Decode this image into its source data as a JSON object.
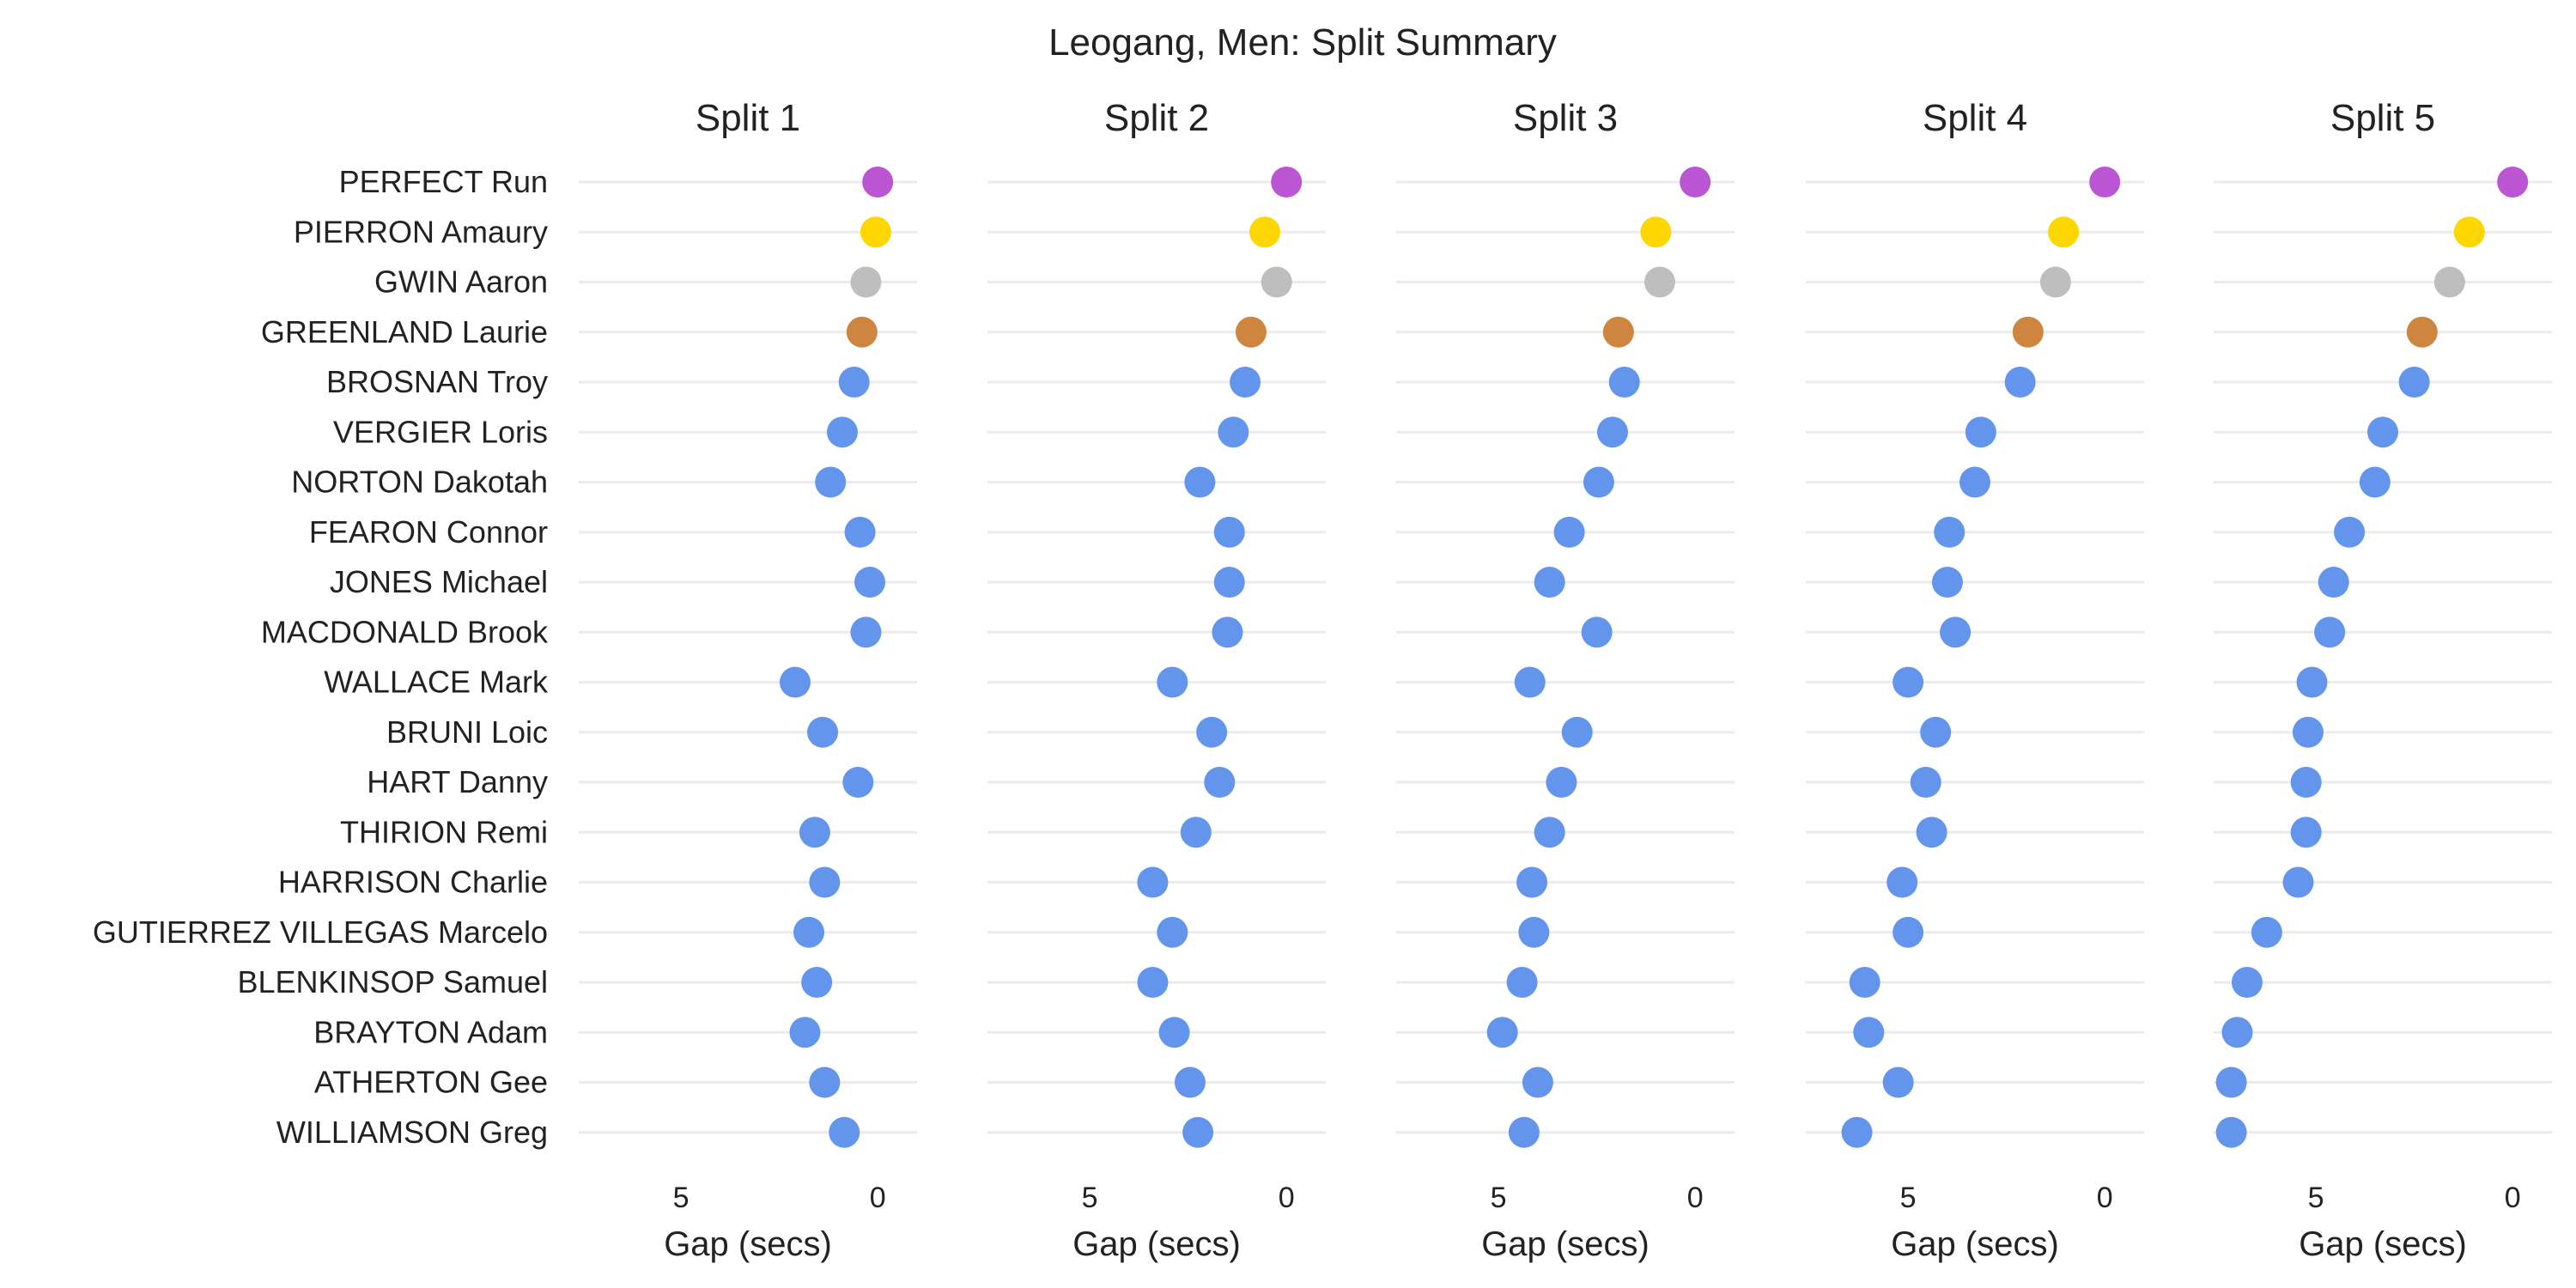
{
  "chart_data": {
    "type": "scatter",
    "title": "Leogang, Men: Split Summary",
    "xlabel": "Gap (secs)",
    "xlim": [
      7.6,
      -1.0
    ],
    "x_ticks": [
      5,
      0
    ],
    "x_reversed": true,
    "grid": "horizontal",
    "legend": "none",
    "riders": [
      "PERFECT Run",
      "PIERRON Amaury",
      "GWIN Aaron",
      "GREENLAND Laurie",
      "BROSNAN Troy",
      "VERGIER Loris",
      "NORTON Dakotah",
      "FEARON Connor",
      "JONES Michael",
      "MACDONALD Brook",
      "WALLACE Mark",
      "BRUNI Loic",
      "HART Danny",
      "THIRION Remi",
      "HARRISON Charlie",
      "GUTIERREZ VILLEGAS Marcelo",
      "BLENKINSOP Samuel",
      "BRAYTON Adam",
      "ATHERTON Gee",
      "WILLIAMSON Greg"
    ],
    "point_colors": [
      "#ba55d3",
      "#ffd700",
      "#bebebe",
      "#cd853f",
      "#6495ed",
      "#6495ed",
      "#6495ed",
      "#6495ed",
      "#6495ed",
      "#6495ed",
      "#6495ed",
      "#6495ed",
      "#6495ed",
      "#6495ed",
      "#6495ed",
      "#6495ed",
      "#6495ed",
      "#6495ed",
      "#6495ed",
      "#6495ed"
    ],
    "panels": [
      {
        "title": "Split 1",
        "values": [
          0.0,
          0.05,
          0.3,
          0.4,
          0.6,
          0.9,
          1.2,
          0.45,
          0.2,
          0.3,
          2.1,
          1.4,
          0.5,
          1.6,
          1.35,
          1.75,
          1.55,
          1.85,
          1.35,
          0.85
        ]
      },
      {
        "title": "Split 2",
        "values": [
          0.0,
          0.55,
          0.25,
          0.9,
          1.05,
          1.35,
          2.2,
          1.45,
          1.45,
          1.5,
          2.9,
          1.9,
          1.7,
          2.3,
          3.4,
          2.9,
          3.4,
          2.85,
          2.45,
          2.25
        ]
      },
      {
        "title": "Split 3",
        "values": [
          0.0,
          1.0,
          0.9,
          1.95,
          1.8,
          2.1,
          2.45,
          3.2,
          3.7,
          2.5,
          4.2,
          3.0,
          3.4,
          3.7,
          4.15,
          4.1,
          4.4,
          4.9,
          4.0,
          4.35
        ]
      },
      {
        "title": "Split 4",
        "values": [
          0.0,
          1.05,
          1.25,
          1.95,
          2.15,
          3.15,
          3.3,
          3.95,
          4.0,
          3.8,
          5.0,
          4.3,
          4.55,
          4.4,
          5.15,
          5.0,
          6.1,
          6.0,
          5.25,
          6.3
        ]
      },
      {
        "title": "Split 5",
        "values": [
          0.0,
          1.1,
          1.6,
          2.3,
          2.5,
          3.3,
          3.5,
          4.15,
          4.55,
          4.65,
          5.1,
          5.2,
          5.25,
          5.25,
          5.45,
          6.25,
          6.75,
          7.0,
          7.15,
          7.15
        ]
      }
    ]
  }
}
